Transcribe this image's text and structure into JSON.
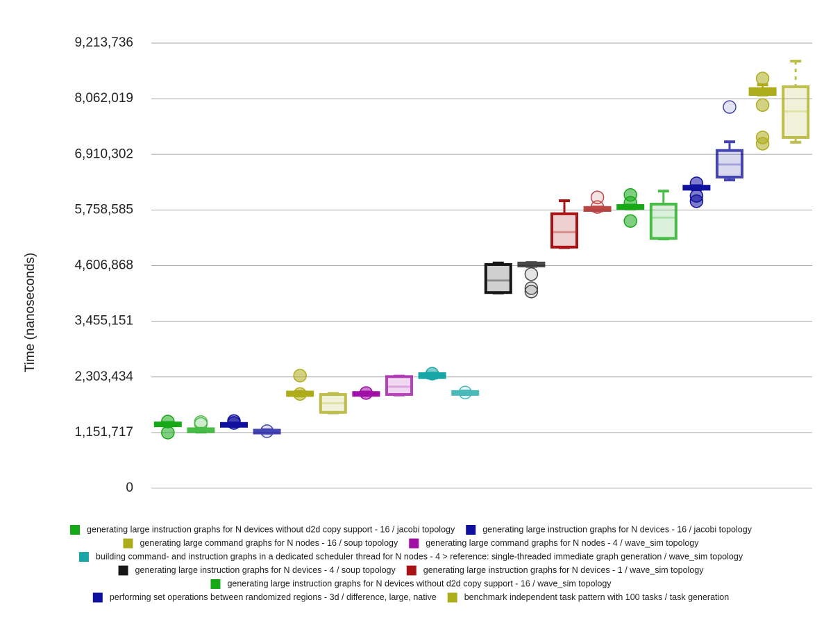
{
  "chart_data": {
    "type": "box",
    "y_label": "Time (nanoseconds)",
    "ylim": [
      0,
      9213736
    ],
    "yticks": [
      0,
      {
        "value": 1151717,
        "label": "1,151,717"
      },
      {
        "value": 2303434,
        "label": "2,303,434"
      },
      {
        "value": 3455151,
        "label": "3,455,151"
      },
      {
        "value": 4606868,
        "label": "4,606,868"
      },
      {
        "value": 5758585,
        "label": "5,758,585"
      },
      {
        "value": 6910302,
        "label": "6,910,302"
      },
      {
        "value": 8062019,
        "label": "8,062,019"
      },
      {
        "value": 9213736,
        "label": "9,213,736"
      }
    ],
    "grid": true,
    "legend": "bottom",
    "series": [
      {
        "name": "generating large instruction graphs for N devices without d2d copy support - 16 / jacobi topology",
        "color": "#17a817",
        "boxes": [
          {
            "min": 1290000,
            "q1": 1300000,
            "median": 1320000,
            "q3": 1350000,
            "max": 1360000,
            "outliers": [
              1380000,
              1150000
            ]
          },
          {
            "min": 1160000,
            "q1": 1170000,
            "median": 1190000,
            "q3": 1230000,
            "max": 1240000,
            "outliers": [
              1370000,
              1330000
            ]
          }
        ]
      },
      {
        "name": "generating large instruction graphs for N devices - 16 / jacobi topology",
        "color": "#10109e",
        "boxes": [
          {
            "min": 1280000,
            "q1": 1290000,
            "median": 1310000,
            "q3": 1340000,
            "max": 1350000,
            "outliers": [
              1390000,
              1350000
            ]
          },
          {
            "min": 1140000,
            "q1": 1150000,
            "median": 1170000,
            "q3": 1200000,
            "max": 1210000,
            "outliers": [
              1180000
            ]
          }
        ]
      },
      {
        "name": "generating large command graphs for N nodes - 16 / soup topology",
        "color": "#adad1c",
        "boxes": [
          {
            "min": 1910000,
            "q1": 1920000,
            "median": 1955000,
            "q3": 1990000,
            "max": 2000000,
            "outliers": [
              2330000,
              1950000
            ]
          },
          {
            "min": 1560000,
            "q1": 1570000,
            "median": 1760000,
            "q3": 1940000,
            "max": 1960000,
            "outliers": []
          }
        ]
      },
      {
        "name": "generating large command graphs for N nodes - 4 / wave_sim topology",
        "color": "#a010a6",
        "boxes": [
          {
            "min": 1920000,
            "q1": 1930000,
            "median": 1950000,
            "q3": 1980000,
            "max": 1990000,
            "outliers": [
              1970000
            ]
          },
          {
            "min": 1930000,
            "q1": 1940000,
            "median": 2100000,
            "q3": 2310000,
            "max": 2320000,
            "outliers": []
          }
        ]
      },
      {
        "name": "building command- and instruction graphs in a dedicated scheduler thread for N nodes - 4 > reference: single-threaded immediate graph generation / wave_sim topology",
        "color": "#18a6a6",
        "boxes": [
          {
            "min": 2280000,
            "q1": 2290000,
            "median": 2330000,
            "q3": 2370000,
            "max": 2380000,
            "outliers": [
              2370000
            ]
          },
          {
            "min": 1940000,
            "q1": 1950000,
            "median": 1970000,
            "q3": 2000000,
            "max": 2010000,
            "outliers": [
              1980000
            ]
          }
        ]
      },
      {
        "name": "generating large instruction graphs for N devices - 4 / soup topology",
        "color": "#161616",
        "boxes": [
          {
            "min": 4040000,
            "q1": 4050000,
            "median": 4300000,
            "q3": 4630000,
            "max": 4660000,
            "outliers": []
          },
          {
            "min": 4590000,
            "q1": 4600000,
            "median": 4630000,
            "q3": 4660000,
            "max": 4670000,
            "outliers": [
              4430000,
              4140000,
              4070000
            ]
          }
        ]
      },
      {
        "name": "generating large instruction graphs for N devices - 1 / wave_sim topology",
        "color": "#a81414",
        "boxes": [
          {
            "min": 4980000,
            "q1": 4990000,
            "median": 5300000,
            "q3": 5680000,
            "max": 5950000,
            "outliers": []
          },
          {
            "min": 5740000,
            "q1": 5750000,
            "median": 5770000,
            "q3": 5810000,
            "max": 5820000,
            "outliers": [
              6020000,
              5820000
            ]
          }
        ]
      },
      {
        "name": "generating large instruction graphs for N devices without d2d copy support - 16 / wave_sim topology",
        "color": "#17a817",
        "boxes": [
          {
            "min": 5780000,
            "q1": 5790000,
            "median": 5820000,
            "q3": 5850000,
            "max": 5860000,
            "outliers": [
              6070000,
              5910000,
              5530000
            ]
          },
          {
            "min": 5160000,
            "q1": 5170000,
            "median": 5600000,
            "q3": 5880000,
            "max": 6150000,
            "outliers": []
          }
        ]
      },
      {
        "name": "performing set operations between randomized regions - 3d / difference, large, native",
        "color": "#10109e",
        "boxes": [
          {
            "min": 6180000,
            "q1": 6190000,
            "median": 6220000,
            "q3": 6250000,
            "max": 6260000,
            "outliers": [
              6310000,
              6050000,
              5940000
            ]
          },
          {
            "min": 6380000,
            "q1": 6440000,
            "median": 6700000,
            "q3": 6990000,
            "max": 7170000,
            "outliers": [
              7890000
            ]
          }
        ]
      },
      {
        "name": "benchmark independent task pattern with 100 tasks / task generation",
        "color": "#adad1c",
        "boxes": [
          {
            "min": 8140000,
            "q1": 8150000,
            "median": 8210000,
            "q3": 8270000,
            "max": 8350000,
            "outliers": [
              8480000,
              7930000,
              7260000,
              7130000
            ]
          },
          {
            "min": 7160000,
            "q1": 7260000,
            "median": 7800000,
            "q3": 8310000,
            "max": 8840000,
            "outliers": []
          }
        ]
      }
    ]
  }
}
